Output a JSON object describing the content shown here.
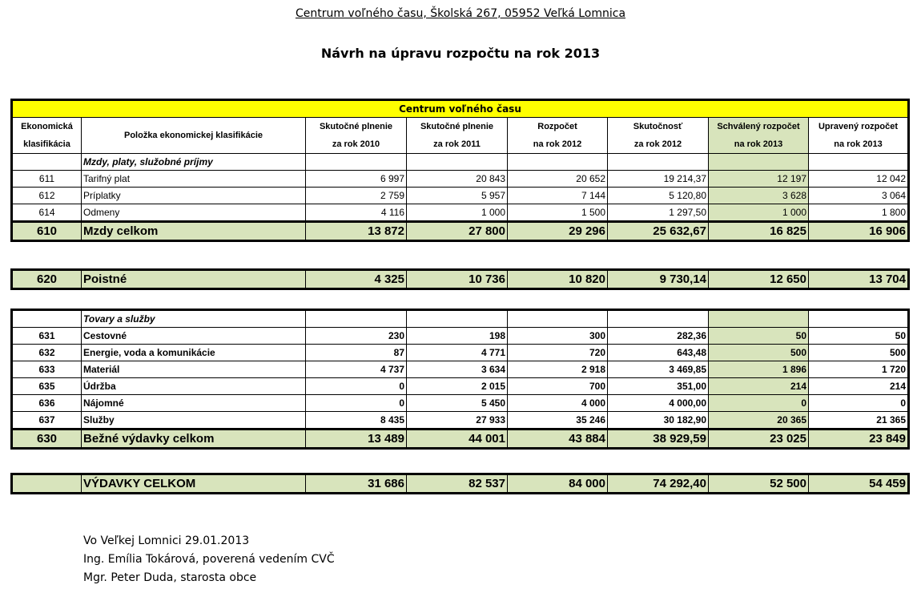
{
  "header": "Centrum voľného času,  Školská 267, 05952 Veľká Lomnica",
  "title": "Návrh na úpravu rozpočtu na rok 2013",
  "table": {
    "banner": "Centrum voľného času",
    "col_ek_line1": "Ekonomická",
    "col_ek_line2": "klasifikácia",
    "col_item": "Položka ekonomickej klasifikácie",
    "cols": [
      [
        "Skutočné plnenie",
        "za rok 2010"
      ],
      [
        "Skutočné plnenie",
        "za rok 2011"
      ],
      [
        "Rozpočet",
        "na rok 2012"
      ],
      [
        "Skutočnosť",
        "za rok 2012"
      ],
      [
        "Schválený rozpočet",
        "na rok 2013"
      ],
      [
        "Upravený rozpočet",
        "na rok 2013"
      ]
    ],
    "wages": {
      "section": "Mzdy, platy, služobné príjmy",
      "rows": [
        {
          "code": "611",
          "name": "Tarifný plat",
          "v": [
            "6 997",
            "20 843",
            "20 652",
            "19 214,37",
            "12 197",
            "12 042"
          ]
        },
        {
          "code": "612",
          "name": "Príplatky",
          "v": [
            "2 759",
            "5 957",
            "7 144",
            "5 120,80",
            "3 628",
            "3 064"
          ]
        },
        {
          "code": "614",
          "name": "Odmeny",
          "v": [
            "4 116",
            "1 000",
            "1 500",
            "1 297,50",
            "1 000",
            "1 800"
          ]
        }
      ],
      "total": {
        "code": "610",
        "name": "Mzdy celkom",
        "v": [
          "13 872",
          "27 800",
          "29 296",
          "25 632,67",
          "16 825",
          "16 906"
        ]
      }
    },
    "insurance": {
      "code": "620",
      "name": "Poistné",
      "v": [
        "4 325",
        "10 736",
        "10 820",
        "9 730,14",
        "12 650",
        "13 704"
      ]
    },
    "goods": {
      "section": "Tovary a služby",
      "rows": [
        {
          "code": "631",
          "name": "Cestovné",
          "v": [
            "230",
            "198",
            "300",
            "282,36",
            "50",
            "50"
          ]
        },
        {
          "code": "632",
          "name": "Energie, voda a komunikácie",
          "v": [
            "87",
            "4 771",
            "720",
            "643,48",
            "500",
            "500"
          ]
        },
        {
          "code": "633",
          "name": "Materiál",
          "v": [
            "4 737",
            "3 634",
            "2 918",
            "3 469,85",
            "1 896",
            "1 720"
          ]
        },
        {
          "code": "635",
          "name": "Údržba",
          "v": [
            "0",
            "2 015",
            "700",
            "351,00",
            "214",
            "214"
          ]
        },
        {
          "code": "636",
          "name": "Nájomné",
          "v": [
            "0",
            "5 450",
            "4 000",
            "4 000,00",
            "0",
            "0"
          ]
        },
        {
          "code": "637",
          "name": "Služby",
          "v": [
            "8 435",
            "27 933",
            "35 246",
            "30 182,90",
            "20 365",
            "21 365"
          ]
        }
      ],
      "total": {
        "code": "630",
        "name": "Bežné výdavky celkom",
        "v": [
          "13 489",
          "44 001",
          "43 884",
          "38 929,59",
          "23 025",
          "23 849"
        ]
      }
    },
    "grand_total": {
      "name": "VÝDAVKY CELKOM",
      "v": [
        "31 686",
        "82 537",
        "84 000",
        "74 292,40",
        "52 500",
        "54 459"
      ]
    }
  },
  "footer": {
    "line1": "Vo Veľkej Lomnici 29.01.2013",
    "line2": "Ing. Emília Tokárová, poverená vedením CVČ",
    "line3": "Mgr. Peter Duda, starosta obce"
  },
  "colors": {
    "banner": "#ffff00",
    "highlight": "#d8e4bc"
  }
}
